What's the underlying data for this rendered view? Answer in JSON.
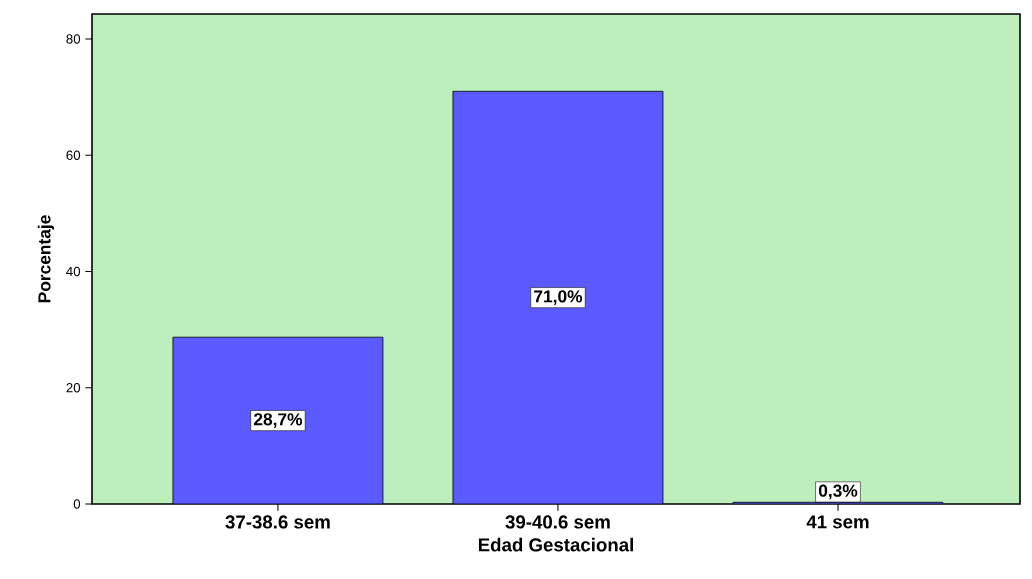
{
  "chart_data": {
    "type": "bar",
    "xlabel": "Edad Gestacional",
    "ylabel": "Porcentaje",
    "categories": [
      "37-38.6 sem",
      "39-40.6 sem",
      "41 sem"
    ],
    "values": [
      28.7,
      71.0,
      0.3
    ],
    "value_labels": [
      "28,7%",
      "71,0%",
      "0,3%"
    ],
    "color": "#5a5aff",
    "ylim": [
      0,
      84.3
    ],
    "yticks": [
      0,
      20,
      40,
      60,
      80
    ],
    "grid": false
  }
}
